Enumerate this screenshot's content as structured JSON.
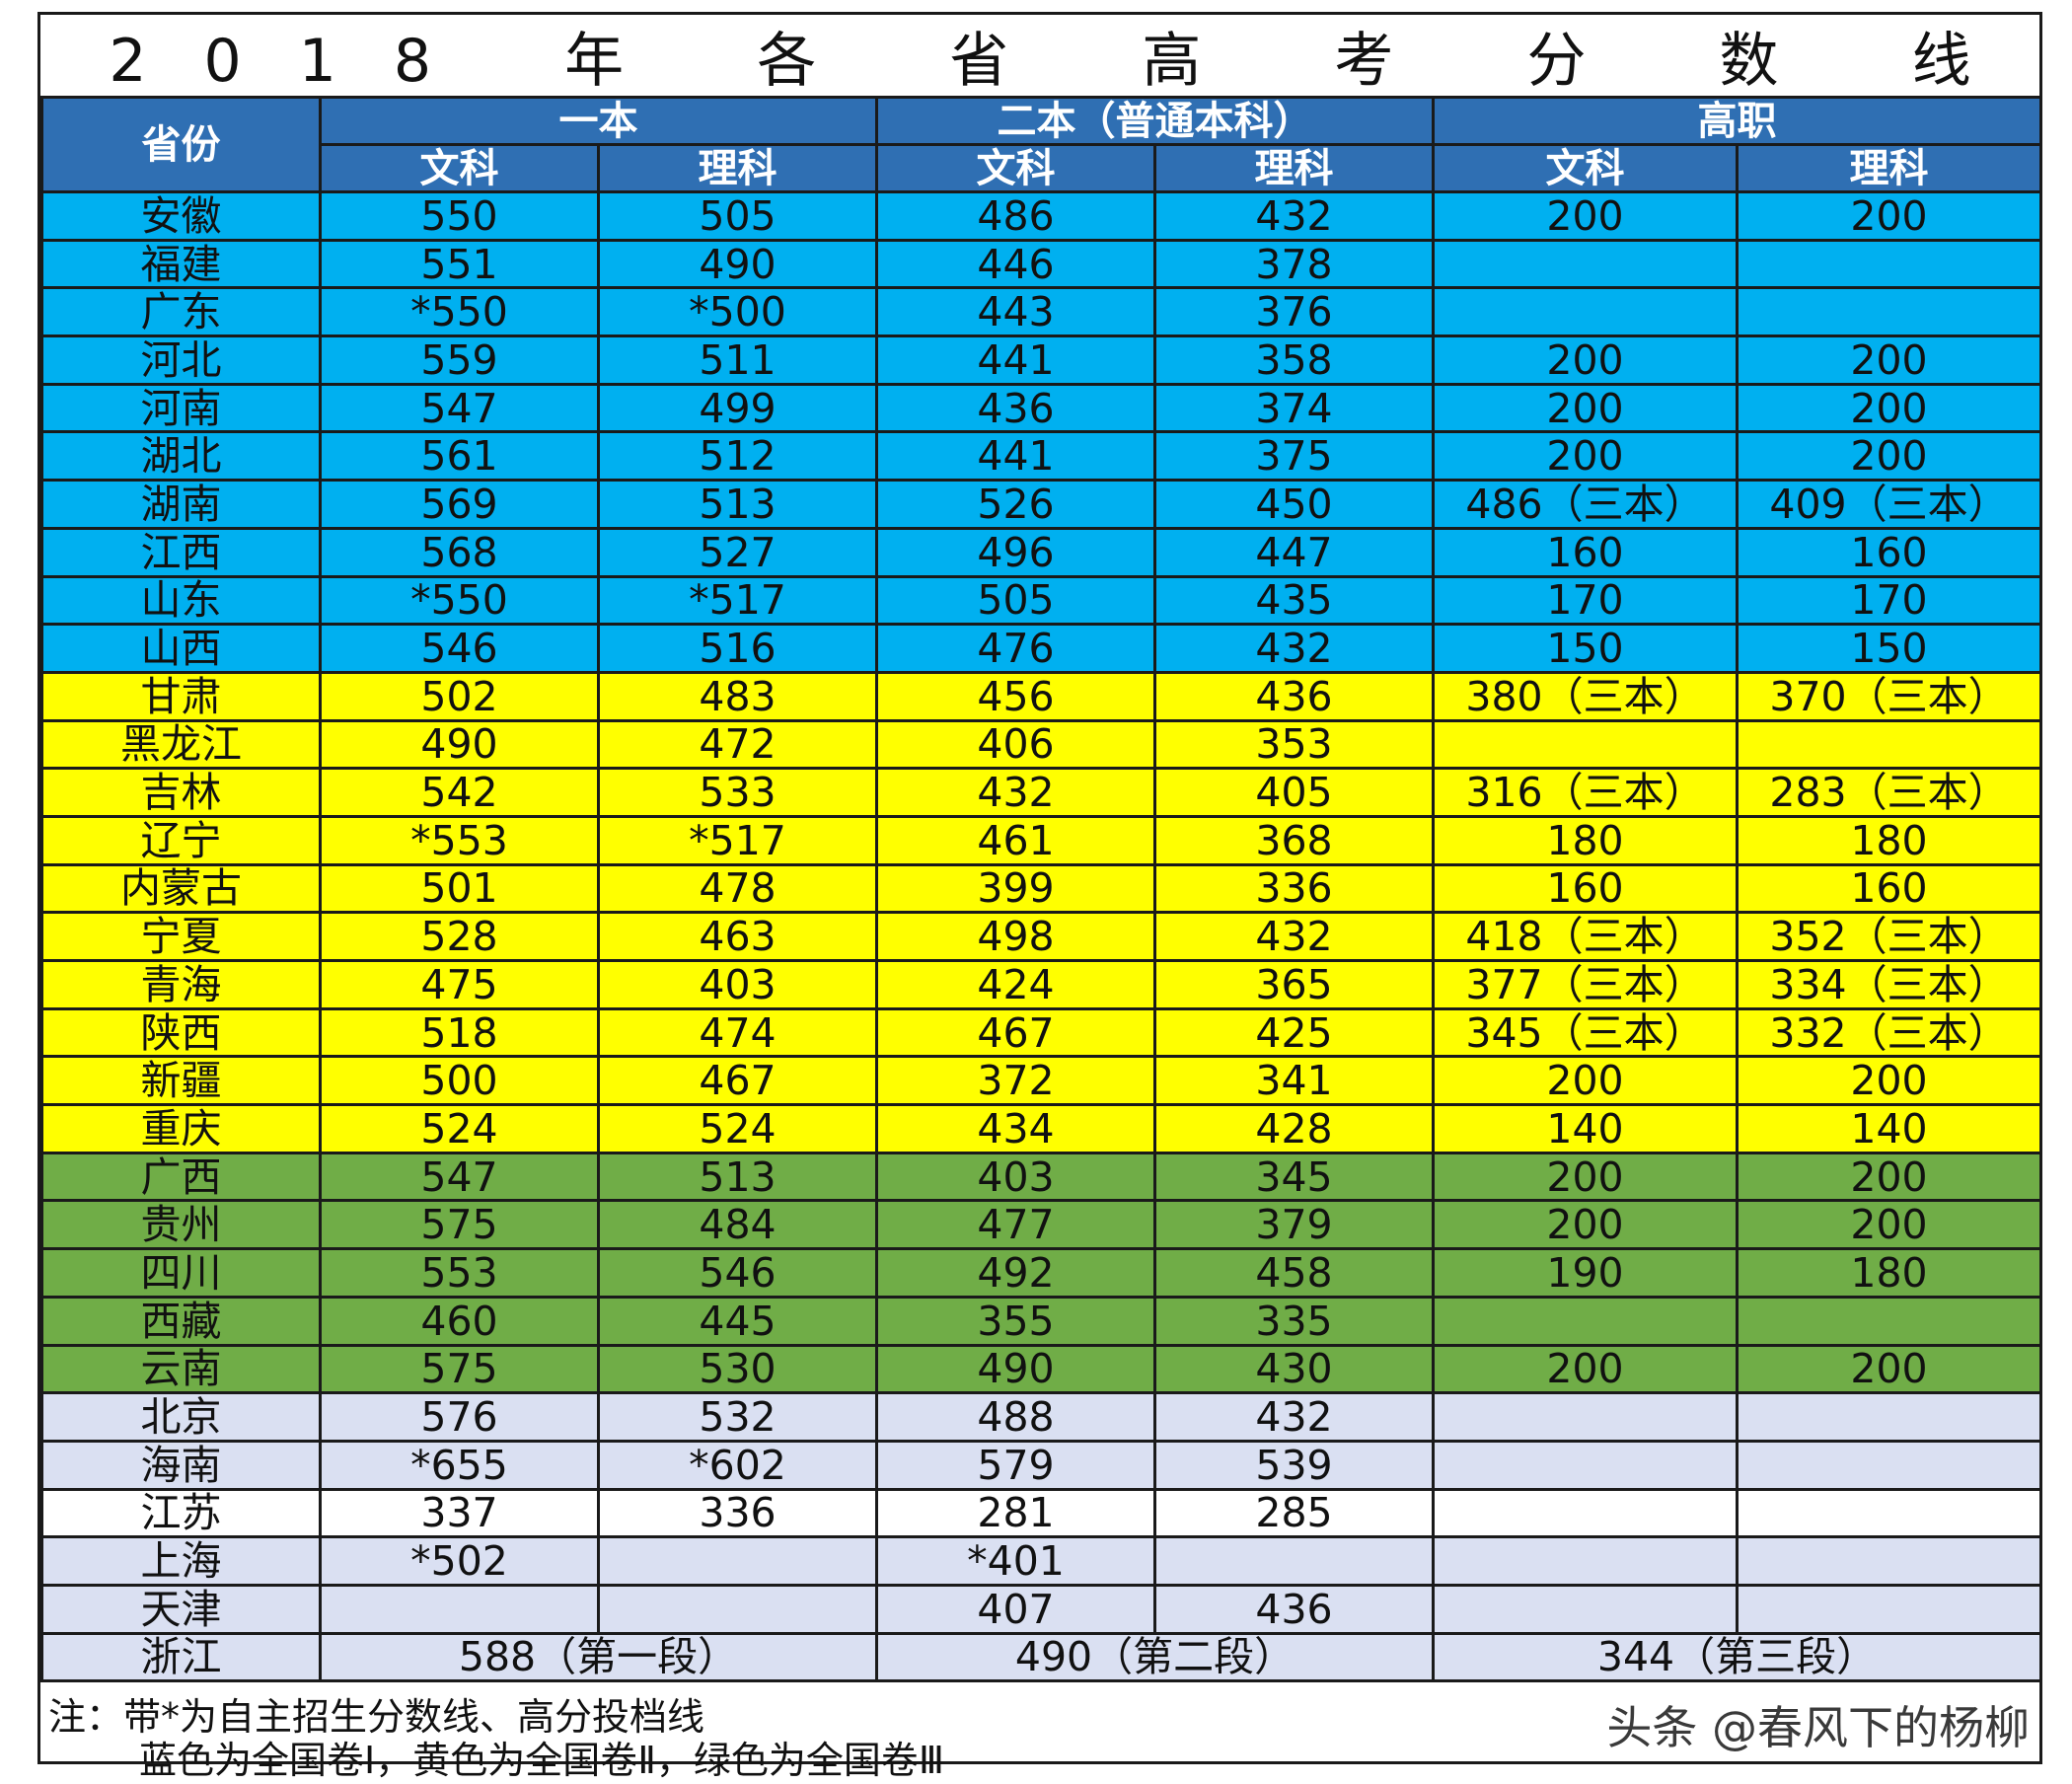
{
  "title": "2018 年 各 省 高 考 分 数 线",
  "headers": {
    "province": "省份",
    "groups": [
      "一本",
      "二本（普通本科）",
      "高职"
    ],
    "sub": [
      "文科",
      "理科",
      "文科",
      "理科",
      "文科",
      "理科"
    ]
  },
  "colors": {
    "header": "#2f6fb3",
    "blue": "#00b0f0",
    "yellow": "#ffff00",
    "green": "#70ad47",
    "gray": "#dae0f2"
  },
  "rows": [
    {
      "group": "blue",
      "cells": [
        "安徽",
        "550",
        "505",
        "486",
        "432",
        "200",
        "200"
      ]
    },
    {
      "group": "blue",
      "cells": [
        "福建",
        "551",
        "490",
        "446",
        "378",
        "",
        ""
      ]
    },
    {
      "group": "blue",
      "cells": [
        "广东",
        "*550",
        "*500",
        "443",
        "376",
        "",
        ""
      ]
    },
    {
      "group": "blue",
      "cells": [
        "河北",
        "559",
        "511",
        "441",
        "358",
        "200",
        "200"
      ]
    },
    {
      "group": "blue",
      "cells": [
        "河南",
        "547",
        "499",
        "436",
        "374",
        "200",
        "200"
      ]
    },
    {
      "group": "blue",
      "cells": [
        "湖北",
        "561",
        "512",
        "441",
        "375",
        "200",
        "200"
      ]
    },
    {
      "group": "blue",
      "cells": [
        "湖南",
        "569",
        "513",
        "526",
        "450",
        "486（三本）",
        "409（三本）"
      ]
    },
    {
      "group": "blue",
      "cells": [
        "江西",
        "568",
        "527",
        "496",
        "447",
        "160",
        "160"
      ]
    },
    {
      "group": "blue",
      "cells": [
        "山东",
        "*550",
        "*517",
        "505",
        "435",
        "170",
        "170"
      ]
    },
    {
      "group": "blue",
      "cells": [
        "山西",
        "546",
        "516",
        "476",
        "432",
        "150",
        "150"
      ]
    },
    {
      "group": "yellow",
      "cells": [
        "甘肃",
        "502",
        "483",
        "456",
        "436",
        "380（三本）",
        "370（三本）"
      ]
    },
    {
      "group": "yellow",
      "cells": [
        "黑龙江",
        "490",
        "472",
        "406",
        "353",
        "",
        ""
      ]
    },
    {
      "group": "yellow",
      "cells": [
        "吉林",
        "542",
        "533",
        "432",
        "405",
        "316（三本）",
        "283（三本）"
      ]
    },
    {
      "group": "yellow",
      "cells": [
        "辽宁",
        "*553",
        "*517",
        "461",
        "368",
        "180",
        "180"
      ]
    },
    {
      "group": "yellow",
      "cells": [
        "内蒙古",
        "501",
        "478",
        "399",
        "336",
        "160",
        "160"
      ]
    },
    {
      "group": "yellow",
      "cells": [
        "宁夏",
        "528",
        "463",
        "498",
        "432",
        "418（三本）",
        "352（三本）"
      ]
    },
    {
      "group": "yellow",
      "cells": [
        "青海",
        "475",
        "403",
        "424",
        "365",
        "377（三本）",
        "334（三本）"
      ]
    },
    {
      "group": "yellow",
      "cells": [
        "陕西",
        "518",
        "474",
        "467",
        "425",
        "345（三本）",
        "332（三本）"
      ]
    },
    {
      "group": "yellow",
      "cells": [
        "新疆",
        "500",
        "467",
        "372",
        "341",
        "200",
        "200"
      ]
    },
    {
      "group": "yellow",
      "cells": [
        "重庆",
        "524",
        "524",
        "434",
        "428",
        "140",
        "140"
      ]
    },
    {
      "group": "green",
      "cells": [
        "广西",
        "547",
        "513",
        "403",
        "345",
        "200",
        "200"
      ]
    },
    {
      "group": "green",
      "cells": [
        "贵州",
        "575",
        "484",
        "477",
        "379",
        "200",
        "200"
      ]
    },
    {
      "group": "green",
      "cells": [
        "四川",
        "553",
        "546",
        "492",
        "458",
        "190",
        "180"
      ]
    },
    {
      "group": "green",
      "cells": [
        "西藏",
        "460",
        "445",
        "355",
        "335",
        "",
        ""
      ]
    },
    {
      "group": "green",
      "cells": [
        "云南",
        "575",
        "530",
        "490",
        "430",
        "200",
        "200"
      ]
    },
    {
      "group": "gray",
      "cells": [
        "北京",
        "576",
        "532",
        "488",
        "432",
        "",
        ""
      ]
    },
    {
      "group": "gray",
      "cells": [
        "海南",
        "*655",
        "*602",
        "579",
        "539",
        "",
        ""
      ]
    },
    {
      "group": "white",
      "cells": [
        "江苏",
        "337",
        "336",
        "281",
        "285",
        "",
        ""
      ]
    },
    {
      "group": "gray",
      "cells": [
        "上海",
        "*502",
        "",
        "*401",
        "",
        "",
        ""
      ]
    },
    {
      "group": "gray",
      "cells": [
        "天津",
        "",
        "",
        "407",
        "436",
        "",
        ""
      ]
    }
  ],
  "zhejiang": {
    "province": "浙江",
    "segments": [
      "588（第一段）",
      "490（第二段）",
      "344（第三段）"
    ]
  },
  "notes": {
    "line1": "注：带*为自主招生分数线、高分投档线",
    "line2": "蓝色为全国卷Ⅰ，黄色为全国卷Ⅱ，绿色为全国卷Ⅲ",
    "watermark": "头条 @春风下的杨柳"
  }
}
